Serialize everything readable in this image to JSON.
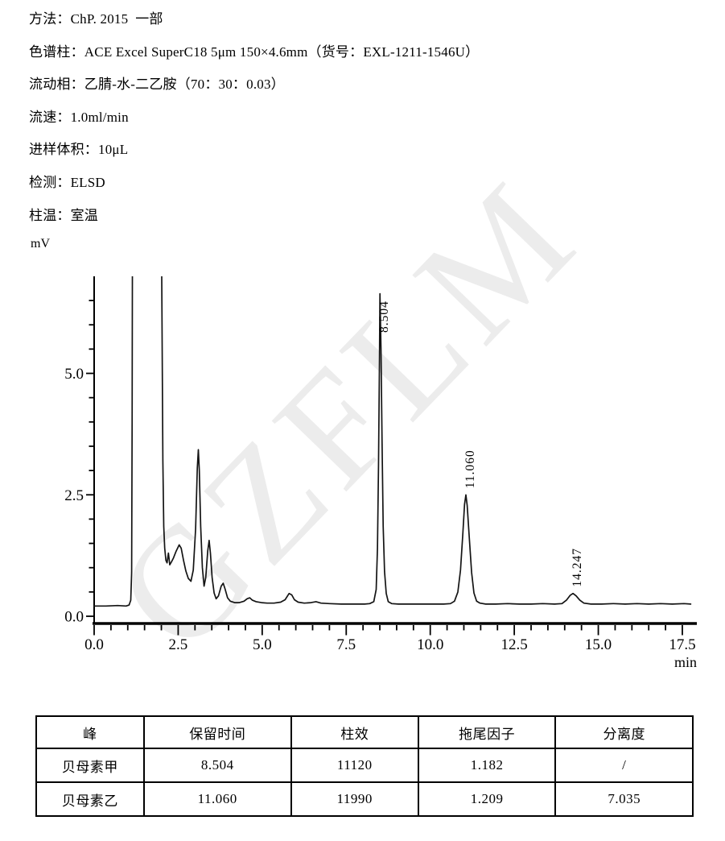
{
  "header": {
    "lines": [
      "方法：ChP. 2015  一部",
      "色谱柱：ACE Excel SuperC18 5μm 150×4.6mm（货号：EXL-1211-1546U）",
      "流动相：乙腈-水-二乙胺（70：30：0.03）",
      "流速：1.0ml/min",
      "进样体积：10μL",
      "检测：ELSD",
      "柱温：室温"
    ]
  },
  "watermark": {
    "text": "GZFLM",
    "color": "#ececec"
  },
  "chart_data": {
    "type": "line",
    "title": "",
    "xlabel": "min",
    "ylabel": "mV",
    "xlim": [
      0,
      17.9
    ],
    "ylim": [
      0,
      7.0
    ],
    "grid": false,
    "line_color": "#141414",
    "x_major_ticks": [
      0.0,
      2.5,
      5.0,
      7.5,
      10.0,
      12.5,
      15.0,
      17.5
    ],
    "x_minor_step": 0.5,
    "y_major_ticks": [
      0.0,
      2.5,
      5.0
    ],
    "y_minor_step": 0.5,
    "y_minor_max": 6.5,
    "baseline_mv": 0.25,
    "solvent_front": {
      "start_min": 1.13,
      "end_min": 2.02,
      "clipped_above_mv": 7.0
    },
    "peaks": [
      {
        "label": "8.504",
        "rt": 8.504,
        "height_mv": 6.64
      },
      {
        "label": "11.060",
        "rt": 11.06,
        "height_mv": 2.5
      },
      {
        "label": "14.247",
        "rt": 14.247,
        "height_mv": 0.47
      }
    ],
    "trace": [
      [
        0.0,
        0.21
      ],
      [
        0.35,
        0.21
      ],
      [
        0.7,
        0.22
      ],
      [
        0.95,
        0.21
      ],
      [
        1.04,
        0.23
      ],
      [
        1.09,
        0.33
      ],
      [
        1.115,
        0.9
      ],
      [
        1.13,
        4.0
      ],
      [
        1.145,
        9.5
      ],
      [
        1.55,
        9.5
      ],
      [
        1.94,
        9.5
      ],
      [
        2.01,
        7.0
      ],
      [
        2.045,
        3.2
      ],
      [
        2.07,
        1.85
      ],
      [
        2.1,
        1.4
      ],
      [
        2.135,
        1.15
      ],
      [
        2.17,
        1.1
      ],
      [
        2.21,
        1.3
      ],
      [
        2.25,
        1.06
      ],
      [
        2.3,
        1.12
      ],
      [
        2.36,
        1.2
      ],
      [
        2.44,
        1.34
      ],
      [
        2.53,
        1.47
      ],
      [
        2.59,
        1.4
      ],
      [
        2.66,
        1.15
      ],
      [
        2.73,
        0.93
      ],
      [
        2.8,
        0.78
      ],
      [
        2.88,
        0.72
      ],
      [
        2.95,
        0.95
      ],
      [
        3.02,
        1.8
      ],
      [
        3.07,
        3.05
      ],
      [
        3.1,
        3.43
      ],
      [
        3.13,
        3.0
      ],
      [
        3.17,
        1.85
      ],
      [
        3.22,
        1.0
      ],
      [
        3.27,
        0.62
      ],
      [
        3.32,
        0.8
      ],
      [
        3.38,
        1.35
      ],
      [
        3.42,
        1.56
      ],
      [
        3.46,
        1.3
      ],
      [
        3.51,
        0.8
      ],
      [
        3.57,
        0.48
      ],
      [
        3.63,
        0.36
      ],
      [
        3.7,
        0.42
      ],
      [
        3.78,
        0.62
      ],
      [
        3.84,
        0.68
      ],
      [
        3.9,
        0.55
      ],
      [
        3.97,
        0.38
      ],
      [
        4.05,
        0.31
      ],
      [
        4.18,
        0.28
      ],
      [
        4.32,
        0.28
      ],
      [
        4.46,
        0.31
      ],
      [
        4.55,
        0.36
      ],
      [
        4.63,
        0.38
      ],
      [
        4.71,
        0.33
      ],
      [
        4.82,
        0.3
      ],
      [
        4.98,
        0.28
      ],
      [
        5.15,
        0.27
      ],
      [
        5.35,
        0.27
      ],
      [
        5.55,
        0.29
      ],
      [
        5.68,
        0.34
      ],
      [
        5.8,
        0.47
      ],
      [
        5.88,
        0.44
      ],
      [
        5.96,
        0.34
      ],
      [
        6.07,
        0.29
      ],
      [
        6.25,
        0.27
      ],
      [
        6.45,
        0.28
      ],
      [
        6.6,
        0.3
      ],
      [
        6.75,
        0.27
      ],
      [
        7.0,
        0.26
      ],
      [
        7.35,
        0.25
      ],
      [
        7.7,
        0.25
      ],
      [
        8.05,
        0.25
      ],
      [
        8.2,
        0.26
      ],
      [
        8.32,
        0.3
      ],
      [
        8.39,
        0.55
      ],
      [
        8.43,
        1.4
      ],
      [
        8.46,
        3.1
      ],
      [
        8.49,
        5.3
      ],
      [
        8.504,
        6.64
      ],
      [
        8.535,
        5.5
      ],
      [
        8.565,
        3.6
      ],
      [
        8.6,
        1.85
      ],
      [
        8.64,
        0.92
      ],
      [
        8.69,
        0.47
      ],
      [
        8.75,
        0.3
      ],
      [
        8.85,
        0.26
      ],
      [
        9.05,
        0.25
      ],
      [
        9.4,
        0.25
      ],
      [
        9.75,
        0.25
      ],
      [
        10.1,
        0.25
      ],
      [
        10.4,
        0.25
      ],
      [
        10.6,
        0.26
      ],
      [
        10.72,
        0.31
      ],
      [
        10.82,
        0.5
      ],
      [
        10.9,
        0.95
      ],
      [
        10.97,
        1.7
      ],
      [
        11.02,
        2.3
      ],
      [
        11.06,
        2.5
      ],
      [
        11.1,
        2.28
      ],
      [
        11.16,
        1.62
      ],
      [
        11.23,
        0.9
      ],
      [
        11.3,
        0.48
      ],
      [
        11.38,
        0.31
      ],
      [
        11.48,
        0.27
      ],
      [
        11.65,
        0.25
      ],
      [
        11.95,
        0.25
      ],
      [
        12.3,
        0.26
      ],
      [
        12.65,
        0.25
      ],
      [
        13.0,
        0.25
      ],
      [
        13.35,
        0.26
      ],
      [
        13.7,
        0.25
      ],
      [
        13.92,
        0.26
      ],
      [
        14.05,
        0.33
      ],
      [
        14.16,
        0.43
      ],
      [
        14.247,
        0.47
      ],
      [
        14.34,
        0.42
      ],
      [
        14.45,
        0.33
      ],
      [
        14.57,
        0.27
      ],
      [
        14.78,
        0.25
      ],
      [
        15.1,
        0.25
      ],
      [
        15.45,
        0.26
      ],
      [
        15.8,
        0.25
      ],
      [
        16.15,
        0.26
      ],
      [
        16.5,
        0.25
      ],
      [
        16.85,
        0.26
      ],
      [
        17.2,
        0.25
      ],
      [
        17.55,
        0.26
      ],
      [
        17.75,
        0.25
      ]
    ]
  },
  "table": {
    "headers": [
      "峰",
      "保留时间",
      "柱效",
      "拖尾因子",
      "分离度"
    ],
    "rows": [
      [
        "贝母素甲",
        "8.504",
        "11120",
        "1.182",
        "/"
      ],
      [
        "贝母素乙",
        "11.060",
        "11990",
        "1.209",
        "7.035"
      ]
    ]
  }
}
